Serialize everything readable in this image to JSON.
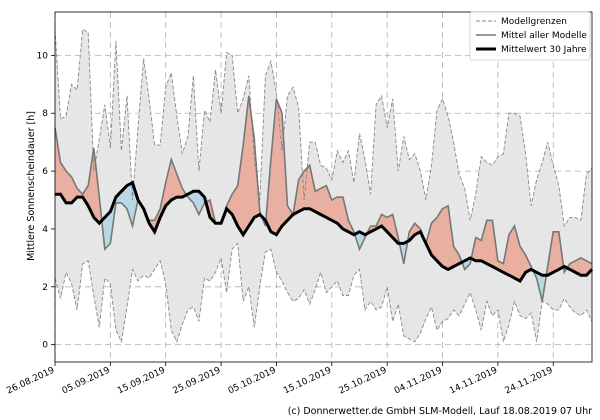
{
  "chart_data": {
    "type": "area",
    "title": "",
    "ylabel": "Mittlere Sonnenscheindauer [h]",
    "xlabel": "",
    "ylim": [
      -0.6,
      11.5
    ],
    "yticks": [
      0,
      2,
      4,
      6,
      8,
      10
    ],
    "grid": true,
    "legend_position": "top-right",
    "x_start": "26.08.2019",
    "x_end": "01.12.2019",
    "xticks": [
      "26.08.2019",
      "05.09.2019",
      "15.09.2019",
      "25.09.2019",
      "05.10.2019",
      "15.10.2019",
      "25.10.2019",
      "04.11.2019",
      "14.11.2019",
      "24.11.2019"
    ],
    "dates": [
      "2019-08-26",
      "2019-08-27",
      "2019-08-28",
      "2019-08-29",
      "2019-08-30",
      "2019-08-31",
      "2019-09-01",
      "2019-09-02",
      "2019-09-03",
      "2019-09-04",
      "2019-09-05",
      "2019-09-06",
      "2019-09-07",
      "2019-09-08",
      "2019-09-09",
      "2019-09-10",
      "2019-09-11",
      "2019-09-12",
      "2019-09-13",
      "2019-09-14",
      "2019-09-15",
      "2019-09-16",
      "2019-09-17",
      "2019-09-18",
      "2019-09-19",
      "2019-09-20",
      "2019-09-21",
      "2019-09-22",
      "2019-09-23",
      "2019-09-24",
      "2019-09-25",
      "2019-09-26",
      "2019-09-27",
      "2019-09-28",
      "2019-09-29",
      "2019-09-30",
      "2019-10-01",
      "2019-10-02",
      "2019-10-03",
      "2019-10-04",
      "2019-10-05",
      "2019-10-06",
      "2019-10-07",
      "2019-10-08",
      "2019-10-09",
      "2019-10-10",
      "2019-10-11",
      "2019-10-12",
      "2019-10-13",
      "2019-10-14",
      "2019-10-15",
      "2019-10-16",
      "2019-10-17",
      "2019-10-18",
      "2019-10-19",
      "2019-10-20",
      "2019-10-21",
      "2019-10-22",
      "2019-10-23",
      "2019-10-24",
      "2019-10-25",
      "2019-10-26",
      "2019-10-27",
      "2019-10-28",
      "2019-10-29",
      "2019-10-30",
      "2019-10-31",
      "2019-11-01",
      "2019-11-02",
      "2019-11-03",
      "2019-11-04",
      "2019-11-05",
      "2019-11-06",
      "2019-11-07",
      "2019-11-08",
      "2019-11-09",
      "2019-11-10",
      "2019-11-11",
      "2019-11-12",
      "2019-11-13",
      "2019-11-14",
      "2019-11-15",
      "2019-11-16",
      "2019-11-17",
      "2019-11-18",
      "2019-11-19",
      "2019-11-20",
      "2019-11-21",
      "2019-11-22",
      "2019-11-23",
      "2019-11-24",
      "2019-11-25",
      "2019-11-26",
      "2019-11-27",
      "2019-11-28",
      "2019-11-29",
      "2019-11-30",
      "2019-12-01"
    ],
    "series": [
      {
        "name": "Modellgrenzen",
        "role": "upper",
        "color": "#888888",
        "style": "dashed",
        "values": [
          10.9,
          7.8,
          7.9,
          9.0,
          8.8,
          10.9,
          10.8,
          6.0,
          7.1,
          8.3,
          6.8,
          10.5,
          6.7,
          8.6,
          5.0,
          7.5,
          9.9,
          8.5,
          6.9,
          6.9,
          8.9,
          9.4,
          7.9,
          6.6,
          7.2,
          9.3,
          6.0,
          8.1,
          7.7,
          9.5,
          8.0,
          10.1,
          10.0,
          8.0,
          8.5,
          9.3,
          6.4,
          5.0,
          9.3,
          9.8,
          8.7,
          6.7,
          8.6,
          8.9,
          8.2,
          5.0,
          7.0,
          7.0,
          6.2,
          6.1,
          5.7,
          6.7,
          6.3,
          6.7,
          5.6,
          7.3,
          6.4,
          5.2,
          8.3,
          8.6,
          7.5,
          8.5,
          6.0,
          7.2,
          6.4,
          6.6,
          6.0,
          5.0,
          6.2,
          8.1,
          8.5,
          7.9,
          7.0,
          5.9,
          5.4,
          4.3,
          5.2,
          6.5,
          6.3,
          6.2,
          6.5,
          6.6,
          8.0,
          8.0,
          7.9,
          6.6,
          4.8,
          5.7,
          6.3,
          7.0,
          6.2,
          5.5,
          4.1,
          4.4,
          4.4,
          4.3,
          5.9,
          6.1
        ]
      },
      {
        "name": "",
        "role": "lower",
        "color": "#888888",
        "style": "dashed",
        "values": [
          2.3,
          1.6,
          2.5,
          2.1,
          1.2,
          2.8,
          2.9,
          1.7,
          0.6,
          2.3,
          2.1,
          0.5,
          0.1,
          1.3,
          2.6,
          2.2,
          2.4,
          2.3,
          2.6,
          2.9,
          2.1,
          0.5,
          0.1,
          0.7,
          1.2,
          1.3,
          0.8,
          2.3,
          2.2,
          2.5,
          3.0,
          1.8,
          3.3,
          3.5,
          1.5,
          2.0,
          0.6,
          2.0,
          3.2,
          3.3,
          2.5,
          2.2,
          1.8,
          1.5,
          1.6,
          1.9,
          1.4,
          1.9,
          2.5,
          1.8,
          2.0,
          2.2,
          1.7,
          1.7,
          2.4,
          2.6,
          1.2,
          1.5,
          1.2,
          1.3,
          2.0,
          0.8,
          1.4,
          0.3,
          0.2,
          0.1,
          0.4,
          0.9,
          1.3,
          0.5,
          0.8,
          0.9,
          1.2,
          1.0,
          1.4,
          1.8,
          1.2,
          0.5,
          1.5,
          1.0,
          1.2,
          0.1,
          0.7,
          1.5,
          1.0,
          0.9,
          1.1,
          0.1,
          1.5,
          1.4,
          1.2,
          1.2,
          1.6,
          1.3,
          1.1,
          1.0,
          1.2,
          0.8
        ]
      },
      {
        "name": "Mittel aller Modelle",
        "role": "mean_models",
        "color": "#777777",
        "style": "solid",
        "values": [
          7.5,
          6.3,
          6.0,
          5.8,
          5.4,
          5.2,
          5.5,
          6.8,
          5.1,
          3.3,
          3.5,
          4.9,
          4.9,
          4.7,
          4.1,
          5.0,
          4.7,
          4.3,
          4.3,
          4.7,
          5.6,
          6.4,
          5.9,
          5.4,
          5.1,
          4.9,
          4.5,
          4.9,
          5.0,
          4.2,
          4.2,
          4.8,
          5.2,
          5.5,
          6.9,
          8.6,
          7.1,
          4.6,
          4.1,
          6.4,
          8.5,
          8.0,
          4.8,
          4.5,
          5.7,
          6.0,
          6.2,
          5.3,
          5.4,
          5.5,
          5.0,
          5.1,
          5.1,
          4.3,
          3.9,
          3.3,
          3.7,
          4.1,
          4.1,
          4.5,
          4.4,
          4.5,
          3.7,
          2.8,
          3.9,
          4.2,
          4.0,
          3.5,
          4.2,
          4.4,
          4.7,
          4.8,
          3.4,
          3.1,
          2.6,
          2.8,
          3.7,
          3.6,
          4.3,
          4.3,
          2.9,
          2.8,
          3.8,
          4.1,
          3.4,
          3.1,
          2.7,
          2.3,
          1.5,
          2.7,
          3.9,
          3.9,
          2.5,
          2.8,
          2.9,
          3.0,
          2.9,
          2.8
        ]
      },
      {
        "name": "Mittelwert 30 Jahre",
        "role": "climate",
        "color": "#000000",
        "style": "solid",
        "values": [
          5.2,
          5.2,
          4.9,
          4.9,
          5.1,
          5.1,
          4.8,
          4.4,
          4.2,
          4.4,
          4.6,
          5.1,
          5.3,
          5.5,
          5.6,
          5.0,
          4.7,
          4.2,
          3.9,
          4.4,
          4.8,
          5.0,
          5.1,
          5.1,
          5.2,
          5.3,
          5.3,
          5.1,
          4.4,
          4.2,
          4.2,
          4.7,
          4.5,
          4.1,
          3.8,
          4.1,
          4.4,
          4.5,
          4.3,
          3.9,
          3.8,
          4.1,
          4.3,
          4.5,
          4.6,
          4.7,
          4.7,
          4.6,
          4.5,
          4.4,
          4.3,
          4.2,
          4.0,
          3.9,
          3.8,
          3.9,
          3.8,
          3.9,
          4.0,
          4.1,
          3.9,
          3.7,
          3.5,
          3.5,
          3.6,
          3.8,
          3.9,
          3.5,
          3.1,
          2.9,
          2.7,
          2.6,
          2.7,
          2.8,
          2.9,
          3.0,
          2.9,
          2.9,
          2.8,
          2.7,
          2.6,
          2.5,
          2.4,
          2.3,
          2.2,
          2.5,
          2.6,
          2.5,
          2.4,
          2.4,
          2.5,
          2.6,
          2.7,
          2.6,
          2.5,
          2.4,
          2.4,
          2.6
        ]
      }
    ],
    "fill_colors": {
      "above": "#e9b0a2",
      "below": "#b9d8e6",
      "band": "#e6e6e6"
    },
    "legend": [
      {
        "label": "Modellgrenzen",
        "style": "dashed",
        "color": "#888888"
      },
      {
        "label": "Mittel aller Modelle",
        "style": "solid",
        "color": "#777777"
      },
      {
        "label": "Mittelwert 30 Jahre",
        "style": "bold",
        "color": "#000000"
      }
    ]
  },
  "footer": {
    "credit": "(c) Donnerwetter.de GmbH SLM-Modell, Lauf 18.08.2019 07 Uhr"
  }
}
